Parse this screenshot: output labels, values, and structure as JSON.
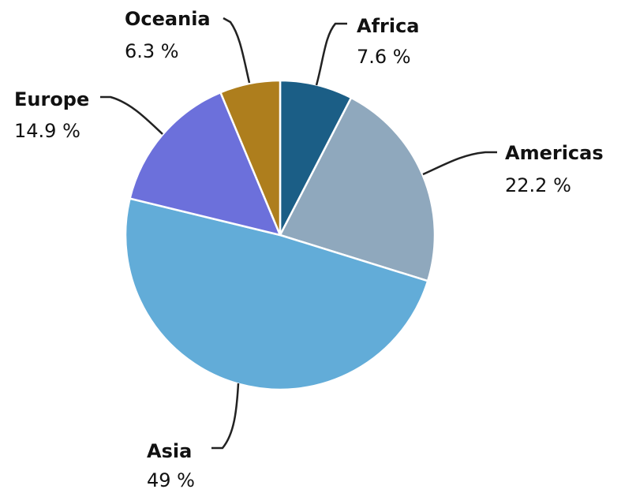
{
  "chart_data": {
    "type": "pie",
    "title": "",
    "start_angle_deg": 0,
    "direction": "clockwise",
    "slices": [
      {
        "name": "Africa",
        "value": 7.6,
        "label": "7.6 %",
        "color": "#1b5e86"
      },
      {
        "name": "Americas",
        "value": 22.2,
        "label": "22.2 %",
        "color": "#8fa8bd"
      },
      {
        "name": "Asia",
        "value": 49,
        "label": "49 %",
        "color": "#62acd8"
      },
      {
        "name": "Europe",
        "value": 14.9,
        "label": "14.9 %",
        "color": "#6c70db"
      },
      {
        "name": "Oceania",
        "value": 6.3,
        "label": "6.3 %",
        "color": "#ae7e1d"
      }
    ],
    "slice_border_color": "#ffffff"
  }
}
